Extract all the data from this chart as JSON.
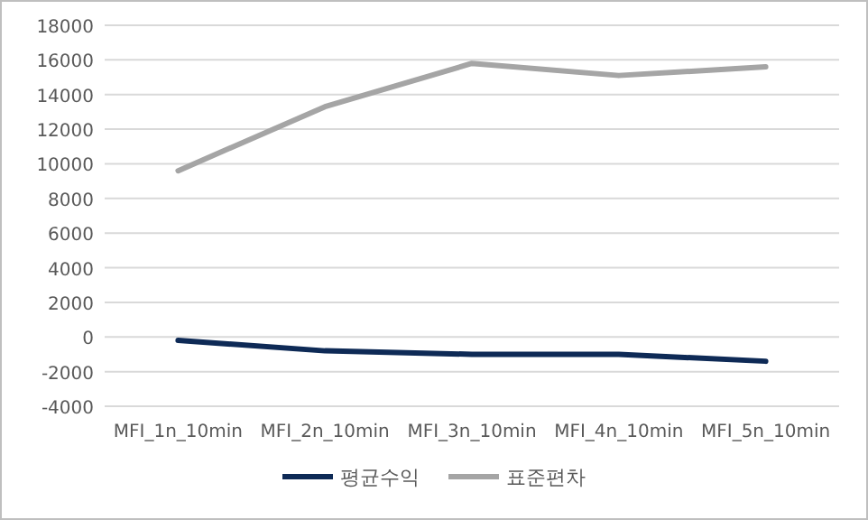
{
  "chart_data": {
    "type": "line",
    "categories": [
      "MFI_1n_10min",
      "MFI_2n_10min",
      "MFI_3n_10min",
      "MFI_4n_10min",
      "MFI_5n_10min"
    ],
    "series": [
      {
        "name": "평균수익",
        "color": "#0e2a56",
        "values": [
          -200,
          -800,
          -1000,
          -1000,
          -1400
        ]
      },
      {
        "name": "표준편차",
        "color": "#a5a5a5",
        "values": [
          9600,
          13300,
          15800,
          15100,
          15600
        ]
      }
    ],
    "ylim": [
      -4000,
      18000
    ],
    "yticks": [
      -4000,
      -2000,
      0,
      2000,
      4000,
      6000,
      8000,
      10000,
      12000,
      14000,
      16000,
      18000
    ],
    "grid": "y",
    "legend": "bottom",
    "marker": "none",
    "line_style": "solid"
  }
}
